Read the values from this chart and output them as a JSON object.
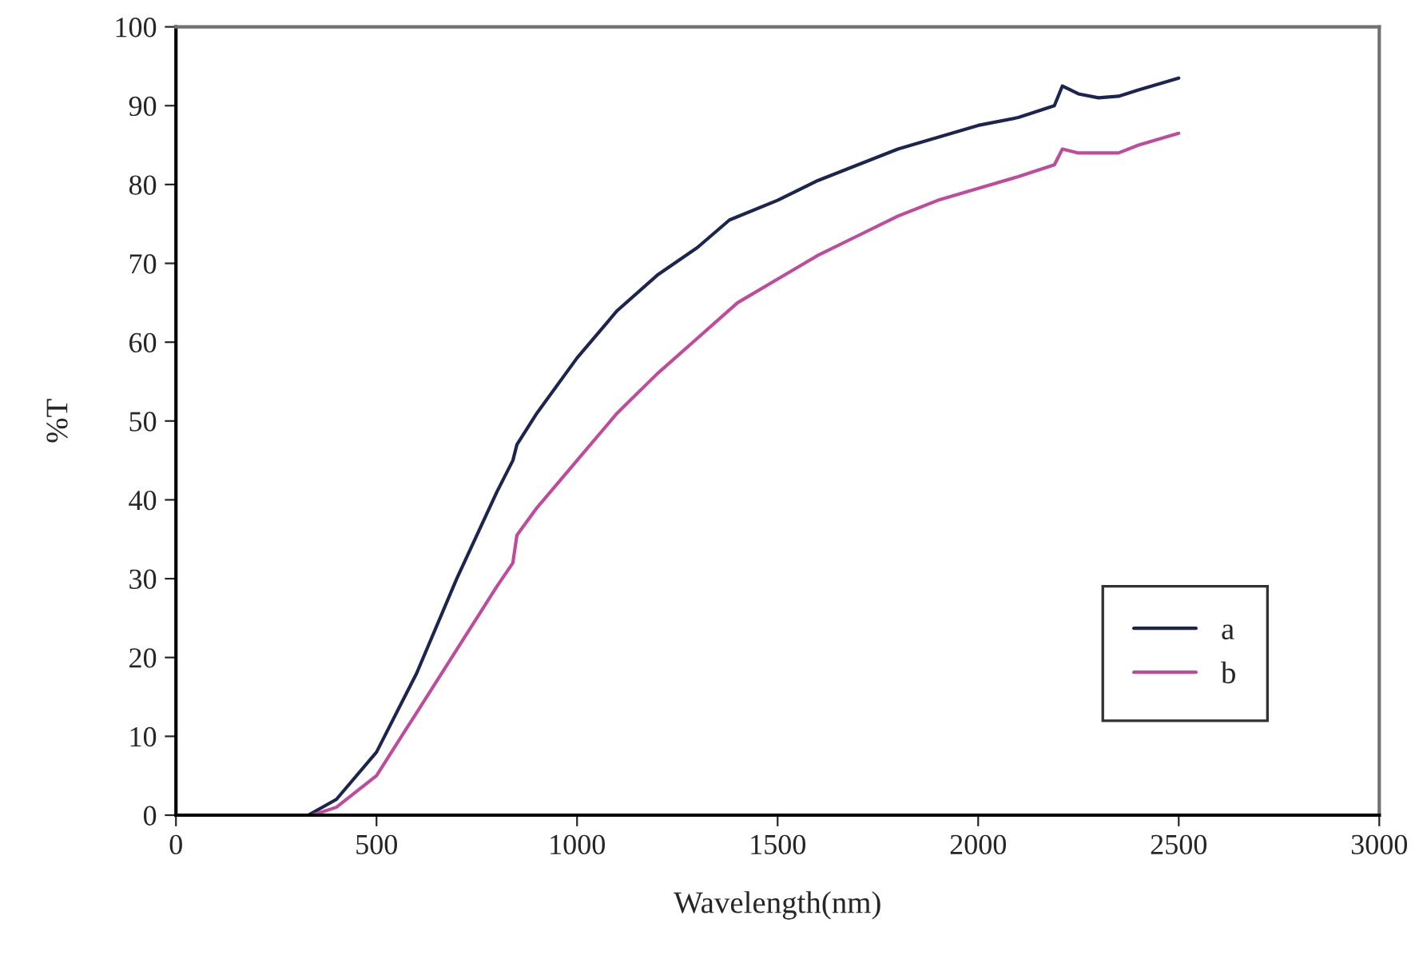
{
  "chart_data": {
    "type": "line",
    "xlabel": "Wavelength(nm)",
    "ylabel": "%T",
    "xlim": [
      0,
      3000
    ],
    "ylim": [
      0,
      100
    ],
    "xticks": [
      0,
      500,
      1000,
      1500,
      2000,
      2500,
      3000
    ],
    "yticks": [
      0,
      10,
      20,
      30,
      40,
      50,
      60,
      70,
      80,
      90,
      100
    ],
    "grid": false,
    "legend": "bottom right",
    "marker": "none",
    "line_style": "solid",
    "series": [
      {
        "name": "a",
        "color": "#1c2550",
        "x": [
          0,
          200,
          330,
          400,
          500,
          600,
          700,
          800,
          840,
          850,
          900,
          1000,
          1100,
          1200,
          1300,
          1380,
          1500,
          1600,
          1700,
          1800,
          1900,
          2000,
          2100,
          2190,
          2210,
          2250,
          2300,
          2350,
          2400,
          2500
        ],
        "values": [
          0,
          0,
          0,
          2,
          8,
          18,
          30,
          41,
          45,
          47,
          51,
          58,
          64,
          68.5,
          72,
          75.5,
          78,
          80.5,
          82.5,
          84.5,
          86,
          87.5,
          88.5,
          90,
          92.5,
          91.5,
          91,
          91.2,
          92,
          93.5
        ]
      },
      {
        "name": "b",
        "color": "#c04a9c",
        "x": [
          0,
          200,
          340,
          400,
          500,
          600,
          700,
          800,
          840,
          850,
          900,
          1000,
          1100,
          1200,
          1300,
          1400,
          1500,
          1600,
          1700,
          1800,
          1900,
          2000,
          2100,
          2190,
          2210,
          2250,
          2300,
          2350,
          2400,
          2500
        ],
        "values": [
          0,
          0,
          0,
          1,
          5,
          13,
          21,
          29,
          32,
          35.5,
          39,
          45,
          51,
          56,
          60.5,
          65,
          68,
          71,
          73.5,
          76,
          78,
          79.5,
          81,
          82.5,
          84.5,
          84,
          84,
          84,
          85,
          86.5
        ]
      }
    ]
  }
}
